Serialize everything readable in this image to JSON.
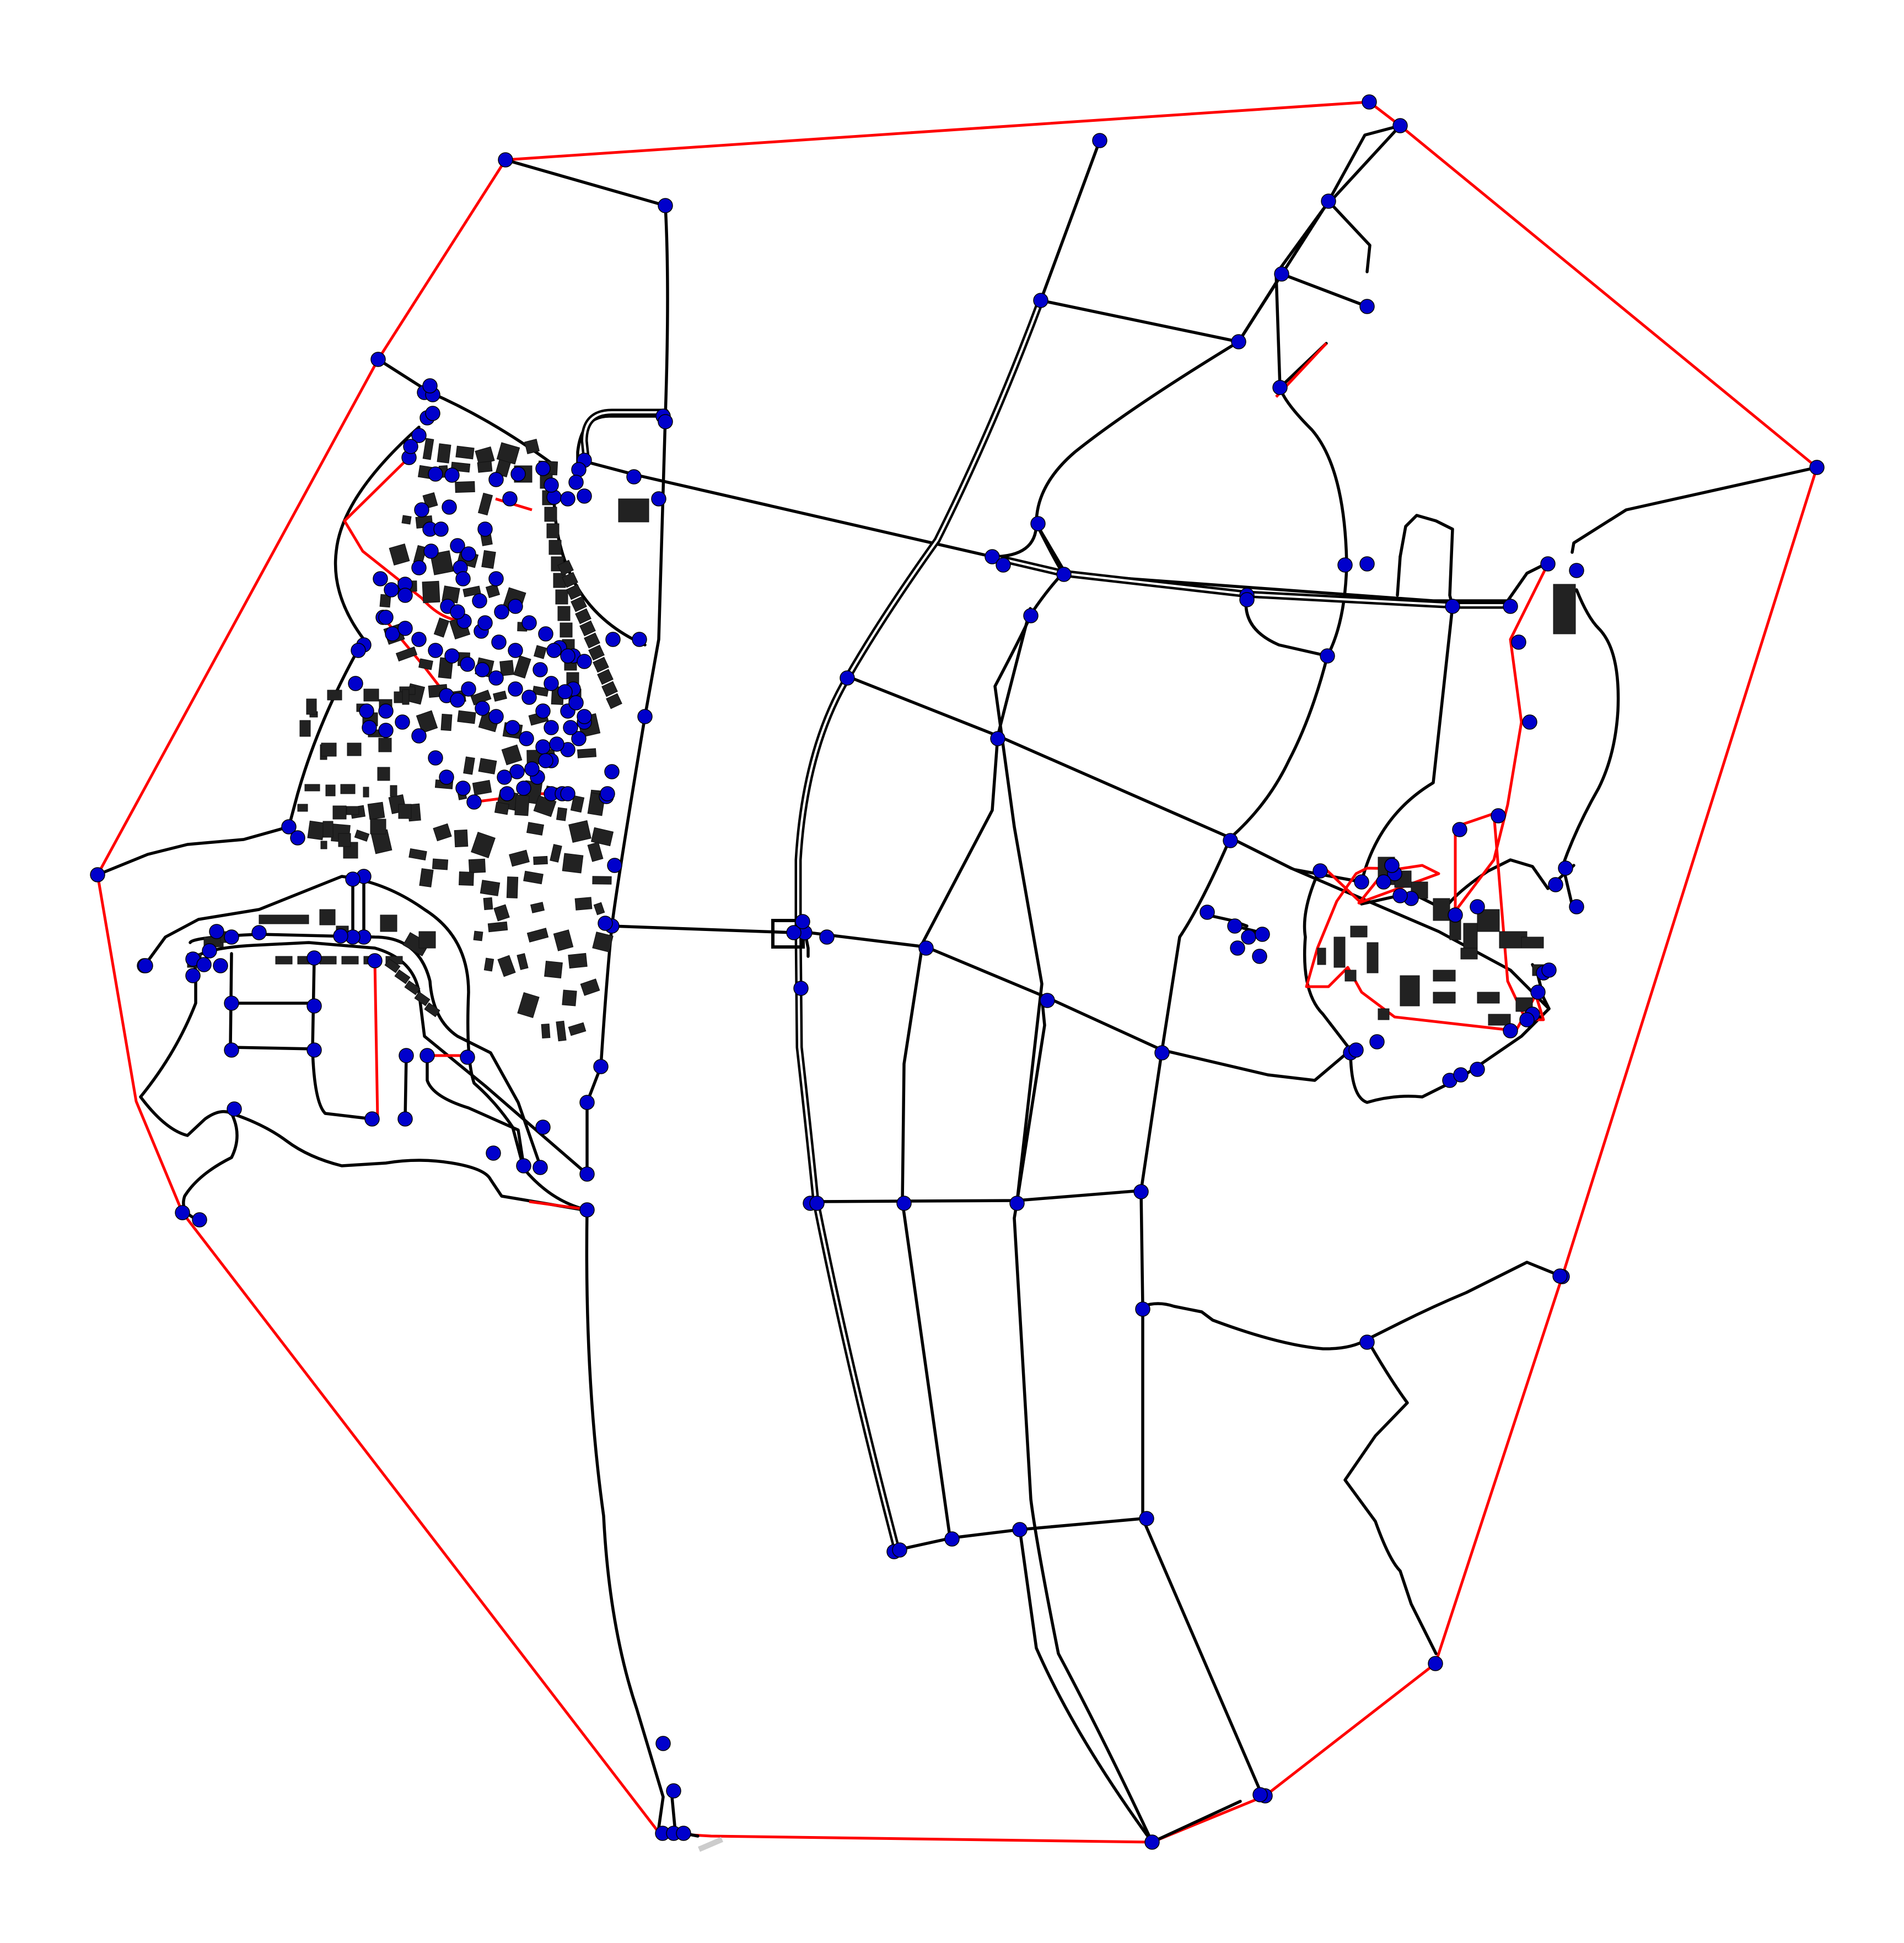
{
  "map": {
    "title": "",
    "colors": {
      "background": "#ffffff",
      "road": "#000000",
      "hull": "#ff0000",
      "node": "#0000cc",
      "building": "#222222",
      "scale_bar": "#cccccc"
    },
    "layers": [
      "hull",
      "roads",
      "dual-carriageways",
      "buildings",
      "nodes",
      "scale-bar"
    ]
  }
}
